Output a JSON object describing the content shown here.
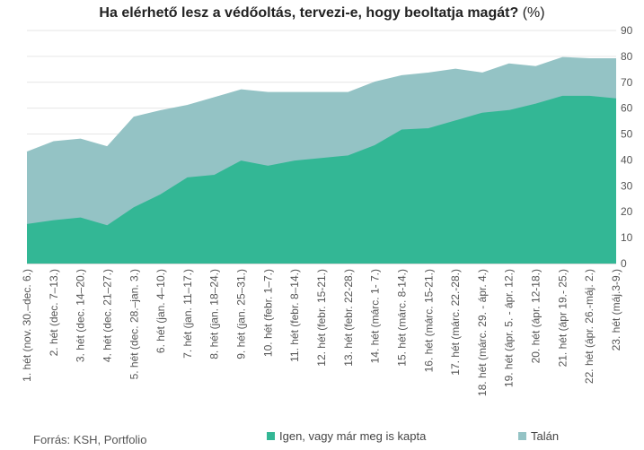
{
  "title": "Ha elérhető lesz a védőoltás, tervezi-e, hogy beoltatja magát?",
  "title_unit": "(%)",
  "source": "Forrás: KSH, Portfolio",
  "colors": {
    "igen": "#33b795",
    "talan": "#94c3c5",
    "grid": "#e6e6e6"
  },
  "chart_data": {
    "type": "area",
    "stacked": false,
    "title": "Ha elérhető lesz a védőoltás, tervezi-e, hogy beoltatja magát? (%)",
    "xlabel": "",
    "ylabel": "",
    "ylim": [
      0,
      90
    ],
    "yticks": [
      0,
      10,
      20,
      30,
      40,
      50,
      60,
      70,
      80,
      90
    ],
    "y_axis_side": "right",
    "grid": true,
    "legend_position": "bottom",
    "categories": [
      "1. hét (nov. 30.–dec. 6.)",
      "2. hét (dec. 7–13.)",
      "3. hét (dec. 14–20.)",
      "4. hét (dec. 21–27.)",
      "5. hét (dec. 28.–jan. 3.)",
      "6. hét (jan. 4–10.)",
      "7. hét (jan. 11–17.)",
      "8. hét (jan. 18–24.)",
      "9. hét (jan. 25–31.)",
      "10. hét (febr. 1–7.)",
      "11. hét (febr. 8–14.)",
      "12. hét (febr. 15-21.)",
      "13. hét (febr. 22-28.)",
      "14. hét (márc. 1- 7.)",
      "15. hét (márc. 8-14.)",
      "16. hét (márc. 15-21.)",
      "17. hét (márc. 22.-28.)",
      "18. hét (márc. 29. - ápr. 4.)",
      "19. hét (ápr. 5. - ápr. 12.)",
      "20. hét (ápr. 12-18.)",
      "21. hét (ápr 19.- 25.)",
      "22. hét (ápr. 26.-máj. 2.)",
      "23. hét (máj.3-9.)"
    ],
    "series": [
      {
        "name": "Talán",
        "values": [
          43,
          47,
          48,
          45,
          56.5,
          59,
          61,
          64,
          67,
          66,
          66,
          66,
          66,
          70,
          72.5,
          73.5,
          75,
          73.5,
          77,
          76,
          79.5,
          79,
          79
        ]
      },
      {
        "name": "Igen, vagy már meg is kapta",
        "values": [
          15,
          16.5,
          17.5,
          14.5,
          21.5,
          26.5,
          33,
          34,
          39.5,
          37.5,
          39.5,
          40.5,
          41.5,
          45.5,
          51.5,
          52,
          55,
          58,
          59,
          61.5,
          64.5,
          64.5,
          63.5
        ]
      }
    ]
  },
  "legend": [
    {
      "label": "Igen, vagy már meg is kapta",
      "color": "#33b795"
    },
    {
      "label": "Talán",
      "color": "#94c3c5"
    }
  ]
}
